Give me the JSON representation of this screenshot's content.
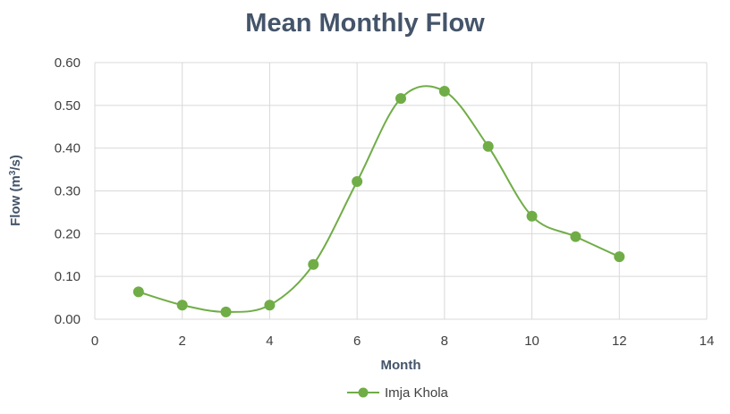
{
  "chart_data": {
    "type": "scatter",
    "title": "Mean Monthly Flow",
    "xlabel": "Month",
    "ylabel_main": "Flow (m",
    "ylabel_sup": "3",
    "ylabel_tail": "/s)",
    "xlim": [
      0,
      14
    ],
    "ylim": [
      0,
      0.6
    ],
    "x_ticks": [
      "0",
      "2",
      "4",
      "6",
      "8",
      "10",
      "12",
      "14"
    ],
    "y_ticks": [
      "0.00",
      "0.10",
      "0.20",
      "0.30",
      "0.40",
      "0.50",
      "0.60"
    ],
    "grid": true,
    "smooth": true,
    "legend_position": "bottom",
    "series": [
      {
        "name": "Imja Khola",
        "color": "#70ad47",
        "x": [
          1,
          2,
          3,
          4,
          5,
          6,
          7,
          8,
          9,
          10,
          11,
          12
        ],
        "y": [
          0.064,
          0.033,
          0.017,
          0.033,
          0.128,
          0.322,
          0.516,
          0.533,
          0.404,
          0.241,
          0.193,
          0.146
        ]
      }
    ]
  }
}
